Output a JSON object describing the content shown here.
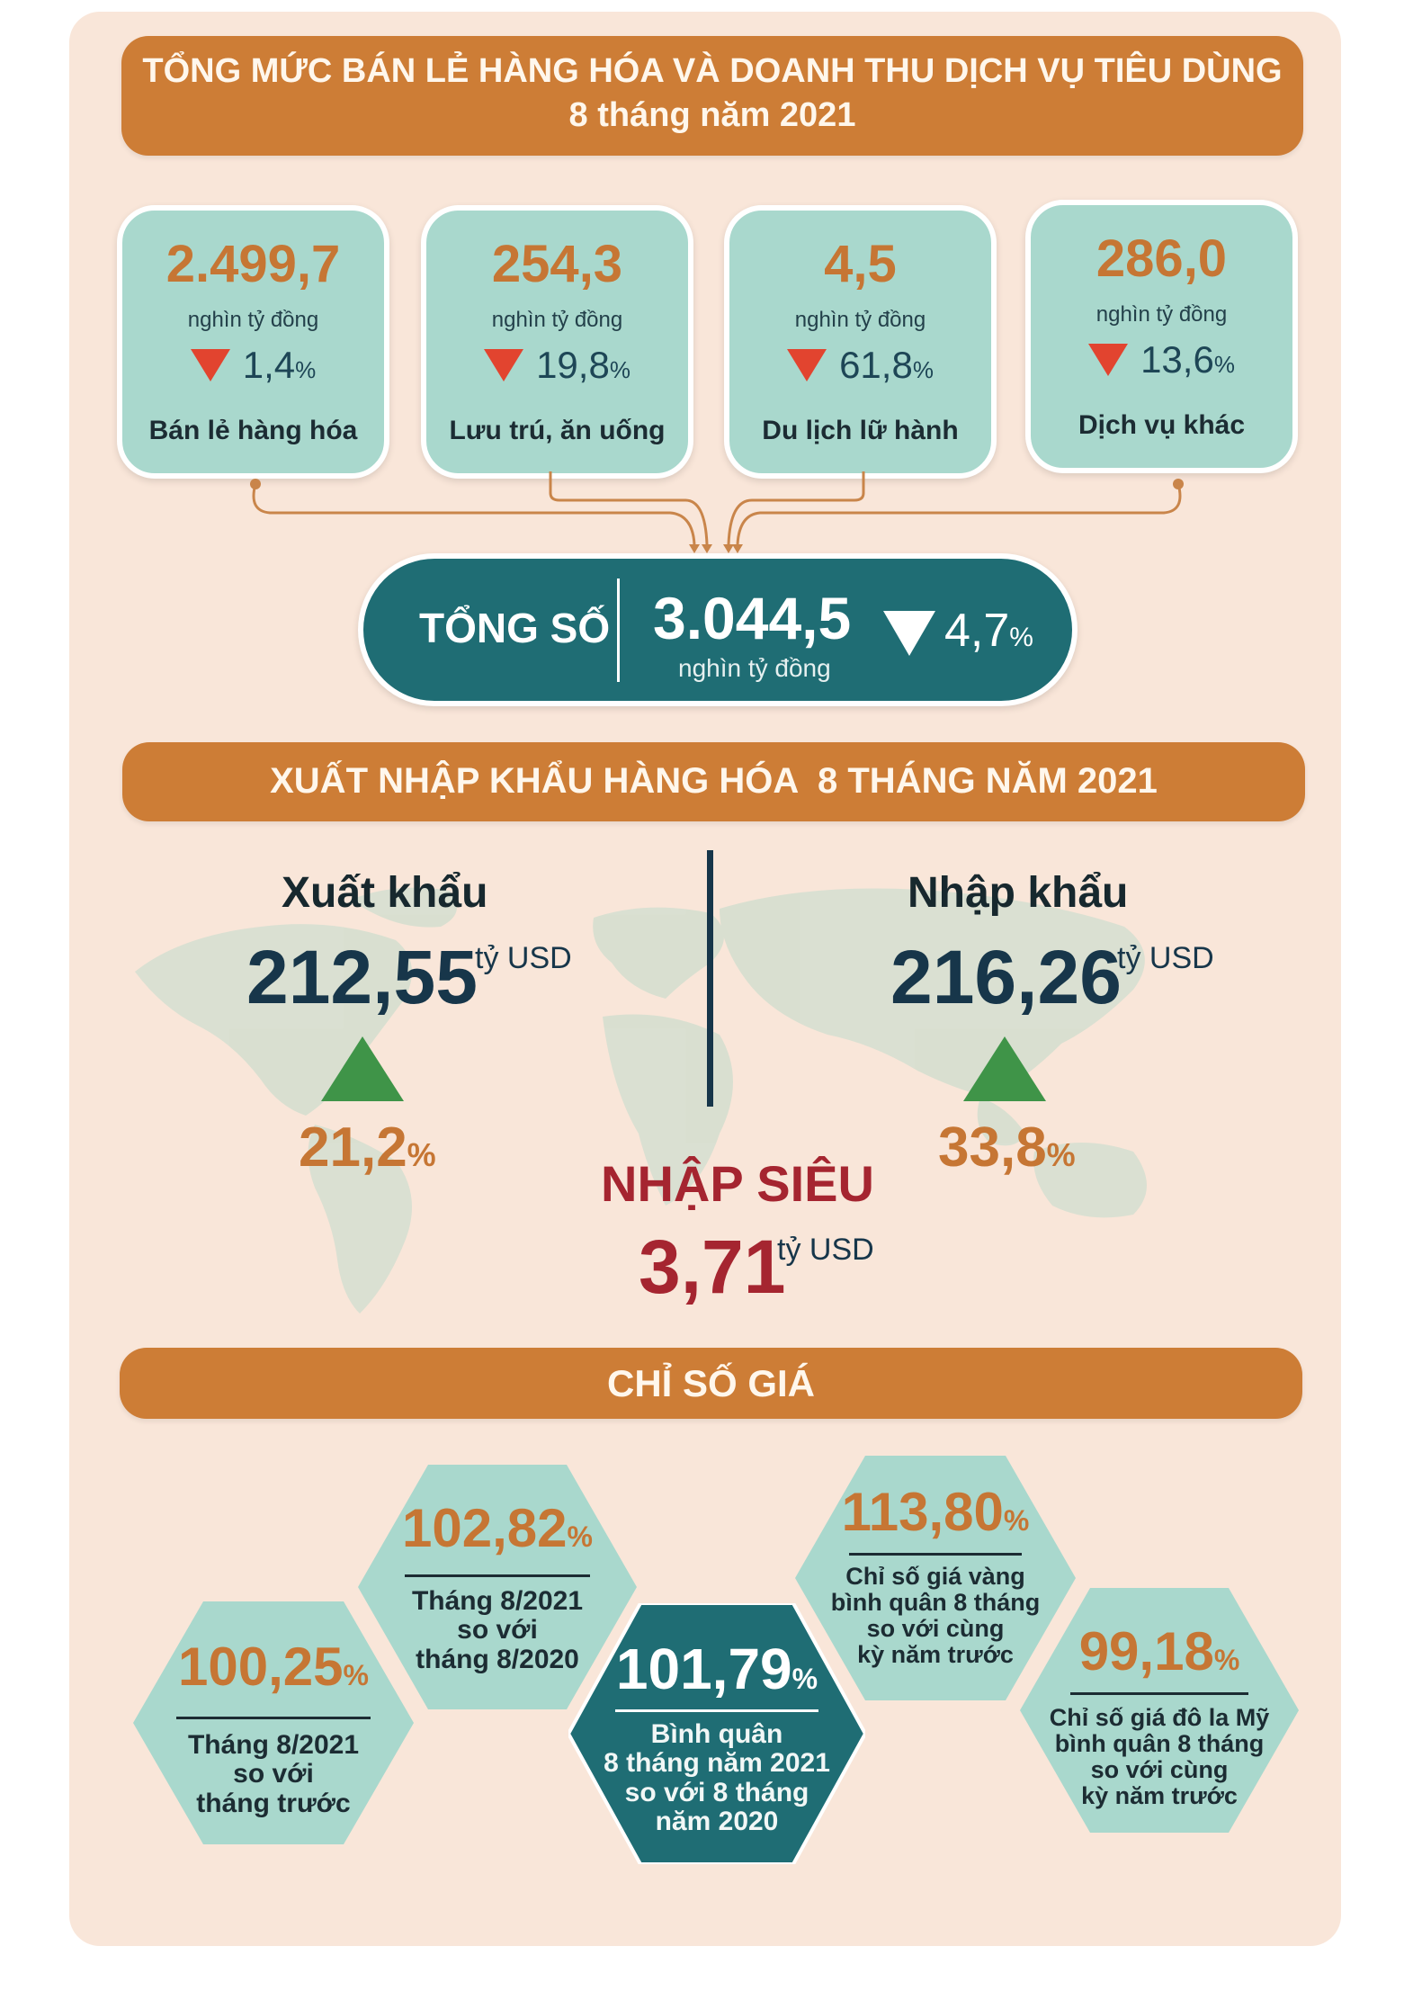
{
  "section1": {
    "title_line1": "TỔNG MỨC BÁN LẺ HÀNG HÓA VÀ DOANH THU DỊCH VỤ TIÊU DÙNG",
    "title_line2": "8 tháng năm 2021",
    "cards": [
      {
        "value": "2.499,7",
        "unit": "nghìn tỷ đồng",
        "change": "1,4",
        "change_unit": "%",
        "label": "Bán lẻ hàng hóa"
      },
      {
        "value": "254,3",
        "unit": "nghìn tỷ đồng",
        "change": "19,8",
        "change_unit": "%",
        "label": "Lưu trú, ăn uống"
      },
      {
        "value": "4,5",
        "unit": "nghìn tỷ đồng",
        "change": "61,8",
        "change_unit": "%",
        "label": "Du lịch lữ hành"
      },
      {
        "value": "286,0",
        "unit": "nghìn tỷ đồng",
        "change": "13,6",
        "change_unit": "%",
        "label": "Dịch vụ khác"
      }
    ],
    "total": {
      "label": "TỔNG SỐ",
      "value": "3.044,5",
      "unit": "nghìn tỷ đồng",
      "change": "4,7",
      "change_unit": "%"
    }
  },
  "section2": {
    "title": "XUẤT NHẬP KHẨU HÀNG HÓA  8 THÁNG NĂM 2021",
    "export": {
      "label": "Xuất khẩu",
      "value": "212,55",
      "unit": "tỷ USD",
      "change": "21,2",
      "change_unit": "%"
    },
    "import": {
      "label": "Nhập khẩu",
      "value": "216,26",
      "unit": "tỷ USD",
      "change": "33,8",
      "change_unit": "%"
    },
    "deficit": {
      "label": "NHẬP SIÊU",
      "value": "3,71",
      "unit": "tỷ USD"
    }
  },
  "section3": {
    "title": "CHỈ SỐ GIÁ",
    "items": [
      {
        "value": "100,25",
        "unit": "%",
        "desc": [
          "Tháng 8/2021",
          "so với",
          "tháng trước"
        ]
      },
      {
        "value": "102,82",
        "unit": "%",
        "desc": [
          "Tháng 8/2021",
          "so với",
          "tháng 8/2020"
        ]
      },
      {
        "value": "101,79",
        "unit": "%",
        "desc": [
          "Bình quân",
          "8 tháng năm 2021",
          "so với 8 tháng",
          "năm 2020"
        ]
      },
      {
        "value": "113,80",
        "unit": "%",
        "desc": [
          "Chỉ số giá vàng",
          "bình quân 8 tháng",
          "so với cùng",
          "kỳ năm trước"
        ]
      },
      {
        "value": "99,18",
        "unit": "%",
        "desc": [
          "Chỉ số giá đô la Mỹ",
          "bình quân 8 tháng",
          "so với cùng",
          "kỳ năm trước"
        ]
      }
    ]
  },
  "colors": {
    "orange": "#cd7d36",
    "teal": "#a9d8cd",
    "dark_teal": "#1f6d74",
    "navy": "#17364a",
    "red": "#a52530",
    "green": "#3f9448",
    "down_red": "#e2442f",
    "background": "#f9e6d9"
  }
}
